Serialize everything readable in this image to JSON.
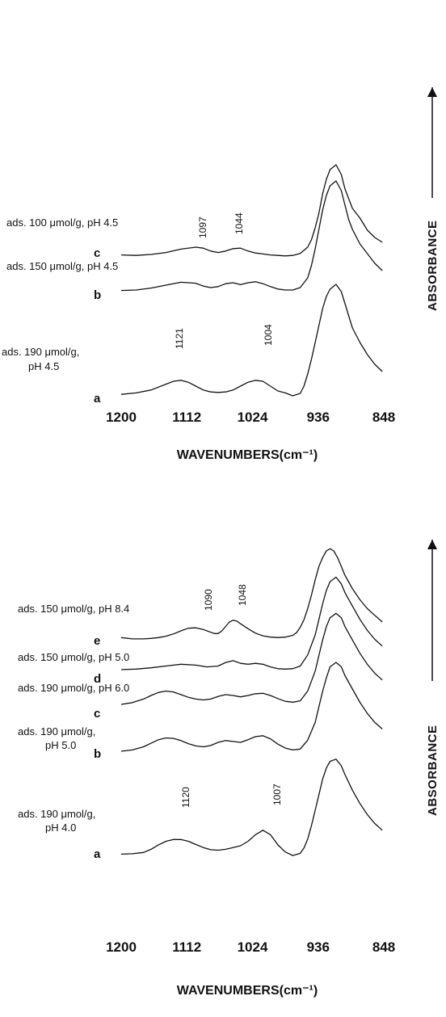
{
  "chart_data": [
    {
      "type": "line",
      "x_range": [
        1200,
        848
      ],
      "xlabel": "WAVENUMBERS",
      "xlabel_unit": "(cm⁻¹)",
      "ylabel": "ABSORBANCE",
      "x_ticks": [
        1200,
        1112,
        1024,
        936,
        848
      ],
      "series": [
        {
          "letter": "c",
          "name": "ads. 100 μmol/g, pH 4.5",
          "peaks": [
            "1097",
            "1044"
          ],
          "x": [
            1200,
            1180,
            1160,
            1140,
            1120,
            1100,
            1090,
            1080,
            1070,
            1060,
            1050,
            1040,
            1030,
            1020,
            1010,
            1000,
            990,
            980,
            970,
            960,
            950,
            945,
            940,
            935,
            930,
            925,
            920,
            912,
            905,
            900,
            895,
            890,
            880,
            870,
            860,
            850
          ],
          "y": [
            0.04,
            0.03,
            0.05,
            0.09,
            0.16,
            0.2,
            0.18,
            0.12,
            0.09,
            0.12,
            0.17,
            0.18,
            0.12,
            0.08,
            0.06,
            0.04,
            0.03,
            0.02,
            0.03,
            0.07,
            0.2,
            0.35,
            0.6,
            0.9,
            1.3,
            1.6,
            1.8,
            1.9,
            1.7,
            1.4,
            1.2,
            1.0,
            0.8,
            0.55,
            0.4,
            0.3
          ]
        },
        {
          "letter": "b",
          "name": "ads. 150 μmol/g, pH 4.5",
          "peaks": [],
          "x": [
            1200,
            1180,
            1160,
            1140,
            1120,
            1100,
            1090,
            1080,
            1070,
            1060,
            1050,
            1040,
            1030,
            1020,
            1010,
            1000,
            990,
            980,
            970,
            960,
            950,
            945,
            940,
            935,
            930,
            925,
            920,
            912,
            905,
            900,
            895,
            890,
            880,
            870,
            860,
            850
          ],
          "y": [
            0.04,
            0.05,
            0.09,
            0.15,
            0.21,
            0.19,
            0.13,
            0.1,
            0.12,
            0.18,
            0.2,
            0.16,
            0.2,
            0.22,
            0.18,
            0.12,
            0.07,
            0.05,
            0.05,
            0.1,
            0.3,
            0.55,
            0.9,
            1.3,
            1.7,
            2.0,
            2.2,
            2.3,
            2.1,
            1.8,
            1.5,
            1.3,
            1.0,
            0.8,
            0.6,
            0.45
          ]
        },
        {
          "letter": "a",
          "name": "ads. 190 μmol/g, pH 4.5",
          "peaks": [
            "1121",
            "1004"
          ],
          "x": [
            1200,
            1180,
            1160,
            1140,
            1130,
            1120,
            1110,
            1100,
            1090,
            1080,
            1070,
            1060,
            1050,
            1040,
            1030,
            1020,
            1010,
            1000,
            990,
            980,
            970,
            960,
            955,
            950,
            945,
            940,
            935,
            930,
            925,
            920,
            912,
            905,
            900,
            895,
            890,
            880,
            870,
            860,
            850
          ],
          "y": [
            0.03,
            0.06,
            0.12,
            0.24,
            0.3,
            0.32,
            0.28,
            0.2,
            0.12,
            0.08,
            0.07,
            0.08,
            0.12,
            0.2,
            0.28,
            0.32,
            0.3,
            0.2,
            0.1,
            0.06,
            0.0,
            0.05,
            0.2,
            0.45,
            0.75,
            1.1,
            1.45,
            1.8,
            2.05,
            2.2,
            2.3,
            2.15,
            1.9,
            1.65,
            1.4,
            1.1,
            0.85,
            0.65,
            0.5
          ]
        }
      ]
    },
    {
      "type": "line",
      "x_range": [
        1200,
        848
      ],
      "xlabel": "WAVENUMBERS",
      "xlabel_unit": "(cm⁻¹)",
      "ylabel": "ABSORBANCE",
      "x_ticks": [
        1200,
        1112,
        1024,
        936,
        848
      ],
      "series": [
        {
          "letter": "e",
          "name": "ads. 150 μmol/g, pH 8.4",
          "peaks": [
            "1090",
            "1048"
          ],
          "x": [
            1200,
            1185,
            1170,
            1160,
            1150,
            1140,
            1130,
            1120,
            1110,
            1100,
            1090,
            1080,
            1075,
            1070,
            1065,
            1060,
            1055,
            1050,
            1045,
            1040,
            1030,
            1020,
            1010,
            1000,
            990,
            980,
            970,
            965,
            960,
            955,
            950,
            945,
            940,
            935,
            930,
            925,
            920,
            915,
            910,
            905,
            900,
            895,
            890,
            880,
            870,
            860,
            850
          ],
          "y": [
            0.05,
            0.02,
            0.02,
            0.03,
            0.05,
            0.08,
            0.13,
            0.2,
            0.26,
            0.27,
            0.23,
            0.17,
            0.14,
            0.14,
            0.2,
            0.3,
            0.4,
            0.44,
            0.42,
            0.36,
            0.25,
            0.15,
            0.09,
            0.06,
            0.05,
            0.06,
            0.1,
            0.16,
            0.28,
            0.45,
            0.7,
            1.0,
            1.35,
            1.65,
            1.85,
            2.0,
            2.05,
            2.0,
            1.85,
            1.65,
            1.45,
            1.3,
            1.15,
            0.9,
            0.7,
            0.55,
            0.4
          ]
        },
        {
          "letter": "d",
          "name": "ads. 150 μmol/g, pH 5.0",
          "peaks": [],
          "x": [
            1200,
            1180,
            1160,
            1140,
            1120,
            1100,
            1085,
            1070,
            1060,
            1050,
            1040,
            1030,
            1020,
            1010,
            1000,
            990,
            980,
            970,
            960,
            950,
            940,
            935,
            930,
            925,
            920,
            912,
            905,
            900,
            890,
            880,
            870,
            860,
            850
          ],
          "y": [
            0.02,
            0.03,
            0.06,
            0.1,
            0.14,
            0.12,
            0.08,
            0.1,
            0.18,
            0.22,
            0.16,
            0.14,
            0.16,
            0.14,
            0.08,
            0.04,
            0.03,
            0.04,
            0.1,
            0.35,
            0.8,
            1.15,
            1.5,
            1.8,
            2.0,
            2.1,
            1.95,
            1.75,
            1.45,
            1.15,
            0.9,
            0.7,
            0.55
          ]
        },
        {
          "letter": "c",
          "name": "ads. 190 μmol/g, pH 6.0",
          "peaks": [],
          "x": [
            1200,
            1185,
            1170,
            1160,
            1150,
            1140,
            1130,
            1120,
            1110,
            1100,
            1090,
            1080,
            1070,
            1060,
            1050,
            1040,
            1030,
            1020,
            1010,
            1000,
            990,
            980,
            970,
            960,
            950,
            940,
            935,
            930,
            925,
            920,
            912,
            905,
            900,
            890,
            880,
            870,
            860,
            850
          ],
          "y": [
            0.0,
            0.04,
            0.12,
            0.2,
            0.27,
            0.3,
            0.28,
            0.22,
            0.16,
            0.12,
            0.1,
            0.12,
            0.18,
            0.22,
            0.2,
            0.17,
            0.2,
            0.24,
            0.25,
            0.2,
            0.13,
            0.07,
            0.05,
            0.08,
            0.3,
            0.75,
            1.1,
            1.45,
            1.75,
            1.95,
            2.05,
            1.95,
            1.75,
            1.45,
            1.15,
            0.9,
            0.7,
            0.55
          ]
        },
        {
          "letter": "b",
          "name": "ads. 190 μmol/g, pH 5.0",
          "peaks": [],
          "x": [
            1200,
            1185,
            1170,
            1160,
            1150,
            1140,
            1130,
            1120,
            1110,
            1100,
            1090,
            1080,
            1070,
            1060,
            1050,
            1040,
            1030,
            1020,
            1010,
            1000,
            990,
            980,
            970,
            960,
            950,
            940,
            935,
            930,
            925,
            920,
            912,
            905,
            900,
            890,
            880,
            870,
            860,
            850
          ],
          "y": [
            0.0,
            0.03,
            0.1,
            0.18,
            0.26,
            0.3,
            0.29,
            0.24,
            0.17,
            0.12,
            0.1,
            0.13,
            0.2,
            0.24,
            0.22,
            0.2,
            0.26,
            0.33,
            0.35,
            0.28,
            0.16,
            0.07,
            0.03,
            0.05,
            0.25,
            0.65,
            1.0,
            1.35,
            1.65,
            1.9,
            2.0,
            1.9,
            1.7,
            1.4,
            1.1,
            0.85,
            0.65,
            0.5
          ]
        },
        {
          "letter": "a",
          "name": "ads. 190 μmol/g, pH 4.0",
          "peaks": [
            "1120",
            "1007"
          ],
          "x": [
            1200,
            1185,
            1170,
            1160,
            1150,
            1140,
            1130,
            1120,
            1110,
            1100,
            1090,
            1080,
            1070,
            1060,
            1050,
            1040,
            1030,
            1020,
            1010,
            1000,
            990,
            980,
            970,
            960,
            955,
            950,
            945,
            940,
            935,
            930,
            925,
            920,
            912,
            905,
            900,
            890,
            880,
            870,
            860,
            850
          ],
          "y": [
            0.01,
            0.02,
            0.05,
            0.12,
            0.22,
            0.3,
            0.34,
            0.34,
            0.3,
            0.23,
            0.16,
            0.11,
            0.1,
            0.12,
            0.16,
            0.2,
            0.3,
            0.45,
            0.55,
            0.45,
            0.22,
            0.06,
            -0.02,
            0.03,
            0.15,
            0.35,
            0.65,
            1.0,
            1.35,
            1.7,
            1.95,
            2.1,
            2.15,
            2.0,
            1.8,
            1.45,
            1.15,
            0.9,
            0.7,
            0.55
          ]
        }
      ]
    }
  ]
}
